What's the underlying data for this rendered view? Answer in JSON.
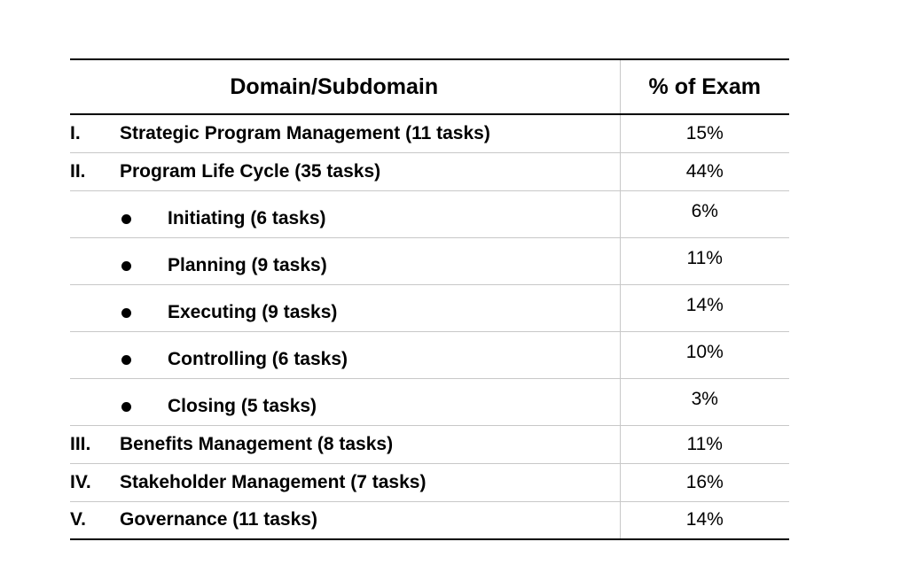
{
  "table": {
    "headers": {
      "domain": "Domain/Subdomain",
      "pct": "% of Exam"
    },
    "rows": [
      {
        "type": "main",
        "numeral": "I.",
        "label": "Strategic Program Management (11 tasks)",
        "pct": "15%"
      },
      {
        "type": "main",
        "numeral": "II.",
        "label": "Program Life Cycle (35 tasks)",
        "pct": "44%"
      },
      {
        "type": "sub",
        "label": "Initiating (6 tasks)",
        "pct": "6%"
      },
      {
        "type": "sub",
        "label": "Planning (9 tasks)",
        "pct": "11%"
      },
      {
        "type": "sub",
        "label": "Executing (9 tasks)",
        "pct": "14%"
      },
      {
        "type": "sub",
        "label": "Controlling (6 tasks)",
        "pct": "10%"
      },
      {
        "type": "sub",
        "label": "Closing (5 tasks)",
        "pct": "3%"
      },
      {
        "type": "main",
        "numeral": "III.",
        "label": "Benefits Management (8 tasks)",
        "pct": "11%"
      },
      {
        "type": "main",
        "numeral": "IV.",
        "label": "Stakeholder Management (7 tasks)",
        "pct": "16%"
      },
      {
        "type": "main",
        "numeral": "V.",
        "label": "Governance (11 tasks)",
        "pct": "14%"
      }
    ]
  }
}
